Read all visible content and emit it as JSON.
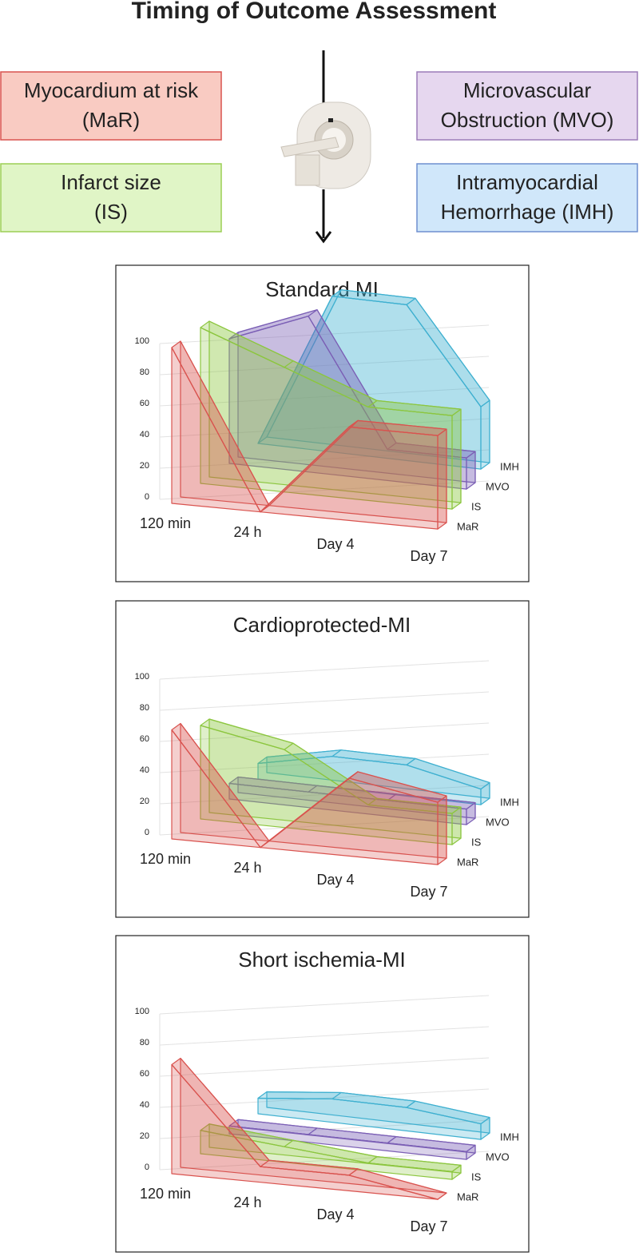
{
  "header": {
    "title": "Timing of Outcome Assessment"
  },
  "outcomes": [
    {
      "lines": [
        "Myocardium at risk",
        "(MaR)"
      ]
    },
    {
      "lines": [
        "Infarct size",
        "(IS)"
      ]
    },
    {
      "lines": [
        "Microvascular",
        "Obstruction (MVO)"
      ]
    },
    {
      "lines": [
        "Intramyocardial",
        "Hemorrhage (IMH)"
      ]
    }
  ],
  "chart_data": [
    {
      "type": "area3d",
      "title": "Standard MI",
      "categories": [
        "120 min",
        "24 h",
        "Day 4",
        "Day 7"
      ],
      "series": [
        {
          "name": "MaR",
          "color": "#d9534f",
          "values": [
            100,
            0,
            60,
            60
          ]
        },
        {
          "name": "IS",
          "color": "#8cc63f",
          "values": [
            100,
            80,
            60,
            60
          ]
        },
        {
          "name": "MVO",
          "color": "#7b5fb5",
          "values": [
            80,
            100,
            20,
            20
          ]
        },
        {
          "name": "IMH",
          "color": "#3fb0d0",
          "values": [
            0,
            100,
            100,
            40
          ]
        }
      ],
      "ylim": [
        0,
        100
      ],
      "yticks": [
        0,
        20,
        40,
        60,
        80,
        100
      ],
      "grid": true
    },
    {
      "type": "area3d",
      "title": "Cardioprotected-MI",
      "categories": [
        "120 min",
        "24 h",
        "Day 4",
        "Day 7"
      ],
      "series": [
        {
          "name": "MaR",
          "color": "#d9534f",
          "values": [
            70,
            0,
            50,
            40
          ]
        },
        {
          "name": "IS",
          "color": "#8cc63f",
          "values": [
            60,
            50,
            20,
            20
          ]
        },
        {
          "name": "MVO",
          "color": "#7b5fb5",
          "values": [
            10,
            10,
            10,
            10
          ]
        },
        {
          "name": "IMH",
          "color": "#3fb0d0",
          "values": [
            10,
            20,
            20,
            10
          ]
        }
      ],
      "ylim": [
        0,
        100
      ],
      "yticks": [
        0,
        20,
        40,
        60,
        80,
        100
      ],
      "grid": true
    },
    {
      "type": "area3d",
      "title": "Short ischemia-MI",
      "categories": [
        "120 min",
        "24 h",
        "Day 4",
        "Day 7"
      ],
      "series": [
        {
          "name": "MaR",
          "color": "#d9534f",
          "values": [
            70,
            10,
            10,
            0
          ]
        },
        {
          "name": "IS",
          "color": "#8cc63f",
          "values": [
            15,
            10,
            5,
            5
          ]
        },
        {
          "name": "MVO",
          "color": "#7b5fb5",
          "values": [
            5,
            5,
            5,
            5
          ]
        },
        {
          "name": "IMH",
          "color": "#3fb0d0",
          "values": [
            10,
            15,
            15,
            10
          ]
        }
      ],
      "ylim": [
        0,
        100
      ],
      "yticks": [
        0,
        20,
        40,
        60,
        80,
        100
      ],
      "grid": true
    }
  ]
}
